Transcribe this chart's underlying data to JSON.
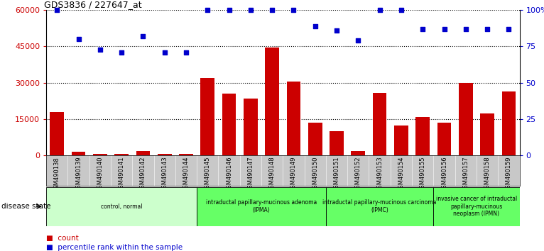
{
  "title": "GDS3836 / 227647_at",
  "samples": [
    "GSM490138",
    "GSM490139",
    "GSM490140",
    "GSM490141",
    "GSM490142",
    "GSM490143",
    "GSM490144",
    "GSM490145",
    "GSM490146",
    "GSM490147",
    "GSM490148",
    "GSM490149",
    "GSM490150",
    "GSM490151",
    "GSM490152",
    "GSM490153",
    "GSM490154",
    "GSM490155",
    "GSM490156",
    "GSM490157",
    "GSM490158",
    "GSM490159"
  ],
  "counts": [
    18000,
    1500,
    700,
    600,
    2000,
    800,
    800,
    32000,
    25500,
    23500,
    44500,
    30500,
    13500,
    10000,
    1800,
    26000,
    12500,
    16000,
    13500,
    30000,
    17500,
    26500
  ],
  "percentiles": [
    100,
    80,
    73,
    71,
    82,
    71,
    71,
    100,
    100,
    100,
    100,
    100,
    89,
    86,
    79,
    100,
    100,
    87,
    87,
    87,
    87,
    87
  ],
  "bar_color": "#cc0000",
  "dot_color": "#0000cc",
  "ylim_left": [
    0,
    60000
  ],
  "ylim_right": [
    0,
    100
  ],
  "yticks_left": [
    0,
    15000,
    30000,
    45000,
    60000
  ],
  "yticks_right": [
    0,
    25,
    50,
    75,
    100
  ],
  "ytick_labels_right": [
    "0",
    "25",
    "50",
    "75",
    "100%"
  ],
  "groups": [
    {
      "label": "control, normal",
      "start": 0,
      "end": 7,
      "color": "#ccffcc"
    },
    {
      "label": "intraductal papillary-mucinous adenoma\n(IPMA)",
      "start": 7,
      "end": 13,
      "color": "#66ff66"
    },
    {
      "label": "intraductal papillary-mucinous carcinoma\n(IPMC)",
      "start": 13,
      "end": 18,
      "color": "#66ff66"
    },
    {
      "label": "invasive cancer of intraductal\npapillary-mucinous\nneoplasm (IPMN)",
      "start": 18,
      "end": 22,
      "color": "#66ff66"
    }
  ],
  "disease_state_label": "disease state",
  "legend_count_label": "count",
  "legend_pct_label": "percentile rank within the sample",
  "bg_color": "#ffffff",
  "tick_area_color": "#c8c8c8"
}
